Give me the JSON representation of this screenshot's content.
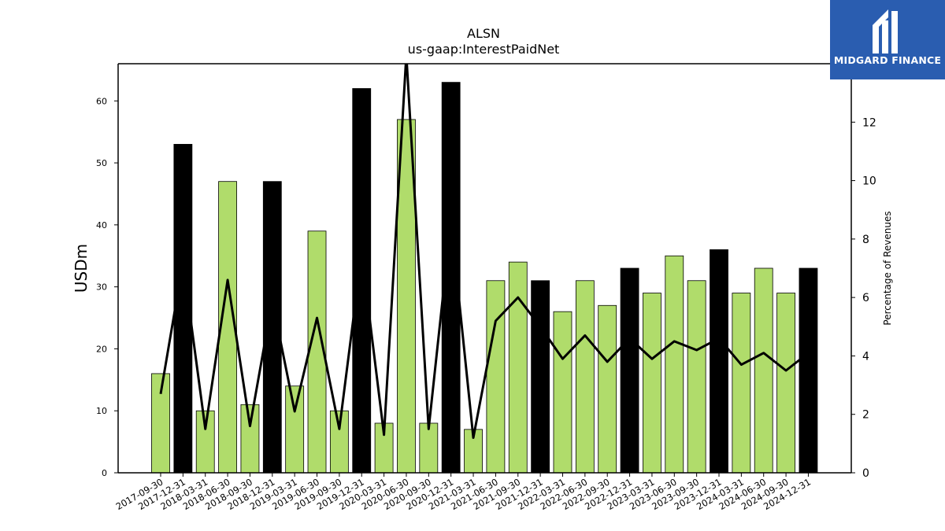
{
  "chart_data": {
    "type": "bar",
    "title": "ALSN",
    "subtitle": "us-gaap:InterestPaidNet",
    "ylabel": "USDm",
    "y2label": "Percentage of Revenues",
    "ylim": [
      0,
      66
    ],
    "y2lim": [
      0,
      14
    ],
    "yticks": [
      0,
      10,
      20,
      30,
      40,
      50,
      60
    ],
    "y2ticks": [
      0,
      2,
      4,
      6,
      8,
      10,
      12
    ],
    "categories": [
      "2017-09-30",
      "2017-12-31",
      "2018-03-31",
      "2018-06-30",
      "2018-09-30",
      "2018-12-31",
      "2019-03-31",
      "2019-06-30",
      "2019-09-30",
      "2019-12-31",
      "2020-03-31",
      "2020-06-30",
      "2020-09-30",
      "2020-12-31",
      "2021-03-31",
      "2021-06-30",
      "2021-09-30",
      "2021-12-31",
      "2022-03-31",
      "2022-06-30",
      "2022-09-30",
      "2022-12-31",
      "2023-03-31",
      "2023-06-30",
      "2023-09-30",
      "2023-12-31",
      "2024-03-31",
      "2024-06-30",
      "2024-09-30",
      "2024-12-31"
    ],
    "series": [
      {
        "values": [
          16,
          53,
          10,
          47,
          11,
          47,
          14,
          39,
          10,
          62,
          8,
          57,
          8,
          63,
          7,
          31,
          34,
          31,
          26,
          31,
          27,
          33,
          29,
          35,
          31,
          36,
          29,
          33,
          29,
          33
        ],
        "colors": [
          "#b0dc6b",
          "#000000",
          "#b0dc6b",
          "#b0dc6b",
          "#b0dc6b",
          "#000000",
          "#b0dc6b",
          "#b0dc6b",
          "#b0dc6b",
          "#000000",
          "#b0dc6b",
          "#b0dc6b",
          "#b0dc6b",
          "#000000",
          "#b0dc6b",
          "#b0dc6b",
          "#b0dc6b",
          "#000000",
          "#b0dc6b",
          "#b0dc6b",
          "#b0dc6b",
          "#000000",
          "#b0dc6b",
          "#b0dc6b",
          "#b0dc6b",
          "#000000",
          "#b0dc6b",
          "#b0dc6b",
          "#b0dc6b",
          "#000000"
        ]
      },
      {
        "axis": "right",
        "type": "line",
        "color": "#000000",
        "values": [
          2.7,
          7.2,
          1.5,
          6.6,
          1.6,
          5.9,
          2.1,
          5.3,
          1.5,
          7.5,
          1.3,
          14.3,
          1.5,
          8.6,
          1.2,
          5.2,
          6.0,
          5.0,
          3.9,
          4.7,
          3.8,
          4.6,
          3.9,
          4.5,
          4.2,
          4.6,
          3.7,
          4.1,
          3.5,
          4.1
        ]
      }
    ],
    "grid": false,
    "legend": "none"
  },
  "branding": {
    "logo_text": "MIDGARD FINANCE",
    "logo_color": "#2a5db0"
  }
}
